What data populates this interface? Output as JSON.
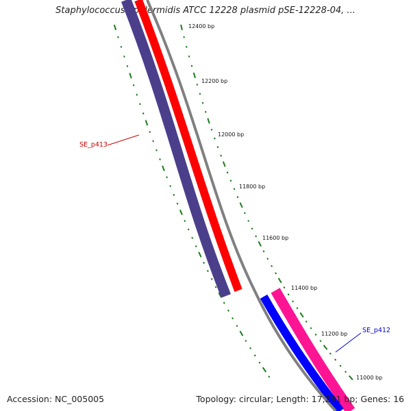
{
  "title": "Staphylococcus epidermidis ATCC 12228 plasmid pSE-12228-04, ...",
  "accession": "Accession: NC_005005",
  "summary": "Topology: circular; Length: 17,261 bp; Genes: 16",
  "ticks": [
    {
      "bp": 12400,
      "label": "12400 bp"
    },
    {
      "bp": 12200,
      "label": "12200 bp"
    },
    {
      "bp": 12000,
      "label": "12000 bp"
    },
    {
      "bp": 11800,
      "label": "11800 bp"
    },
    {
      "bp": 11600,
      "label": "11600 bp"
    },
    {
      "bp": 11400,
      "label": "11400 bp"
    },
    {
      "bp": 11200,
      "label": "11200 bp"
    },
    {
      "bp": 11000,
      "label": "11000 bp"
    }
  ],
  "genes": [
    {
      "name": "SE_p413",
      "color": "#ff0000",
      "outline_color": "#4b3f8c",
      "label_color": "#cc0000"
    },
    {
      "name": "SE_p412",
      "color": "#0000ff",
      "outline_color": "#ff1493",
      "label_color": "#0000cc"
    }
  ],
  "colors": {
    "backbone": "#808080",
    "ticks": "#1a7a1a"
  }
}
